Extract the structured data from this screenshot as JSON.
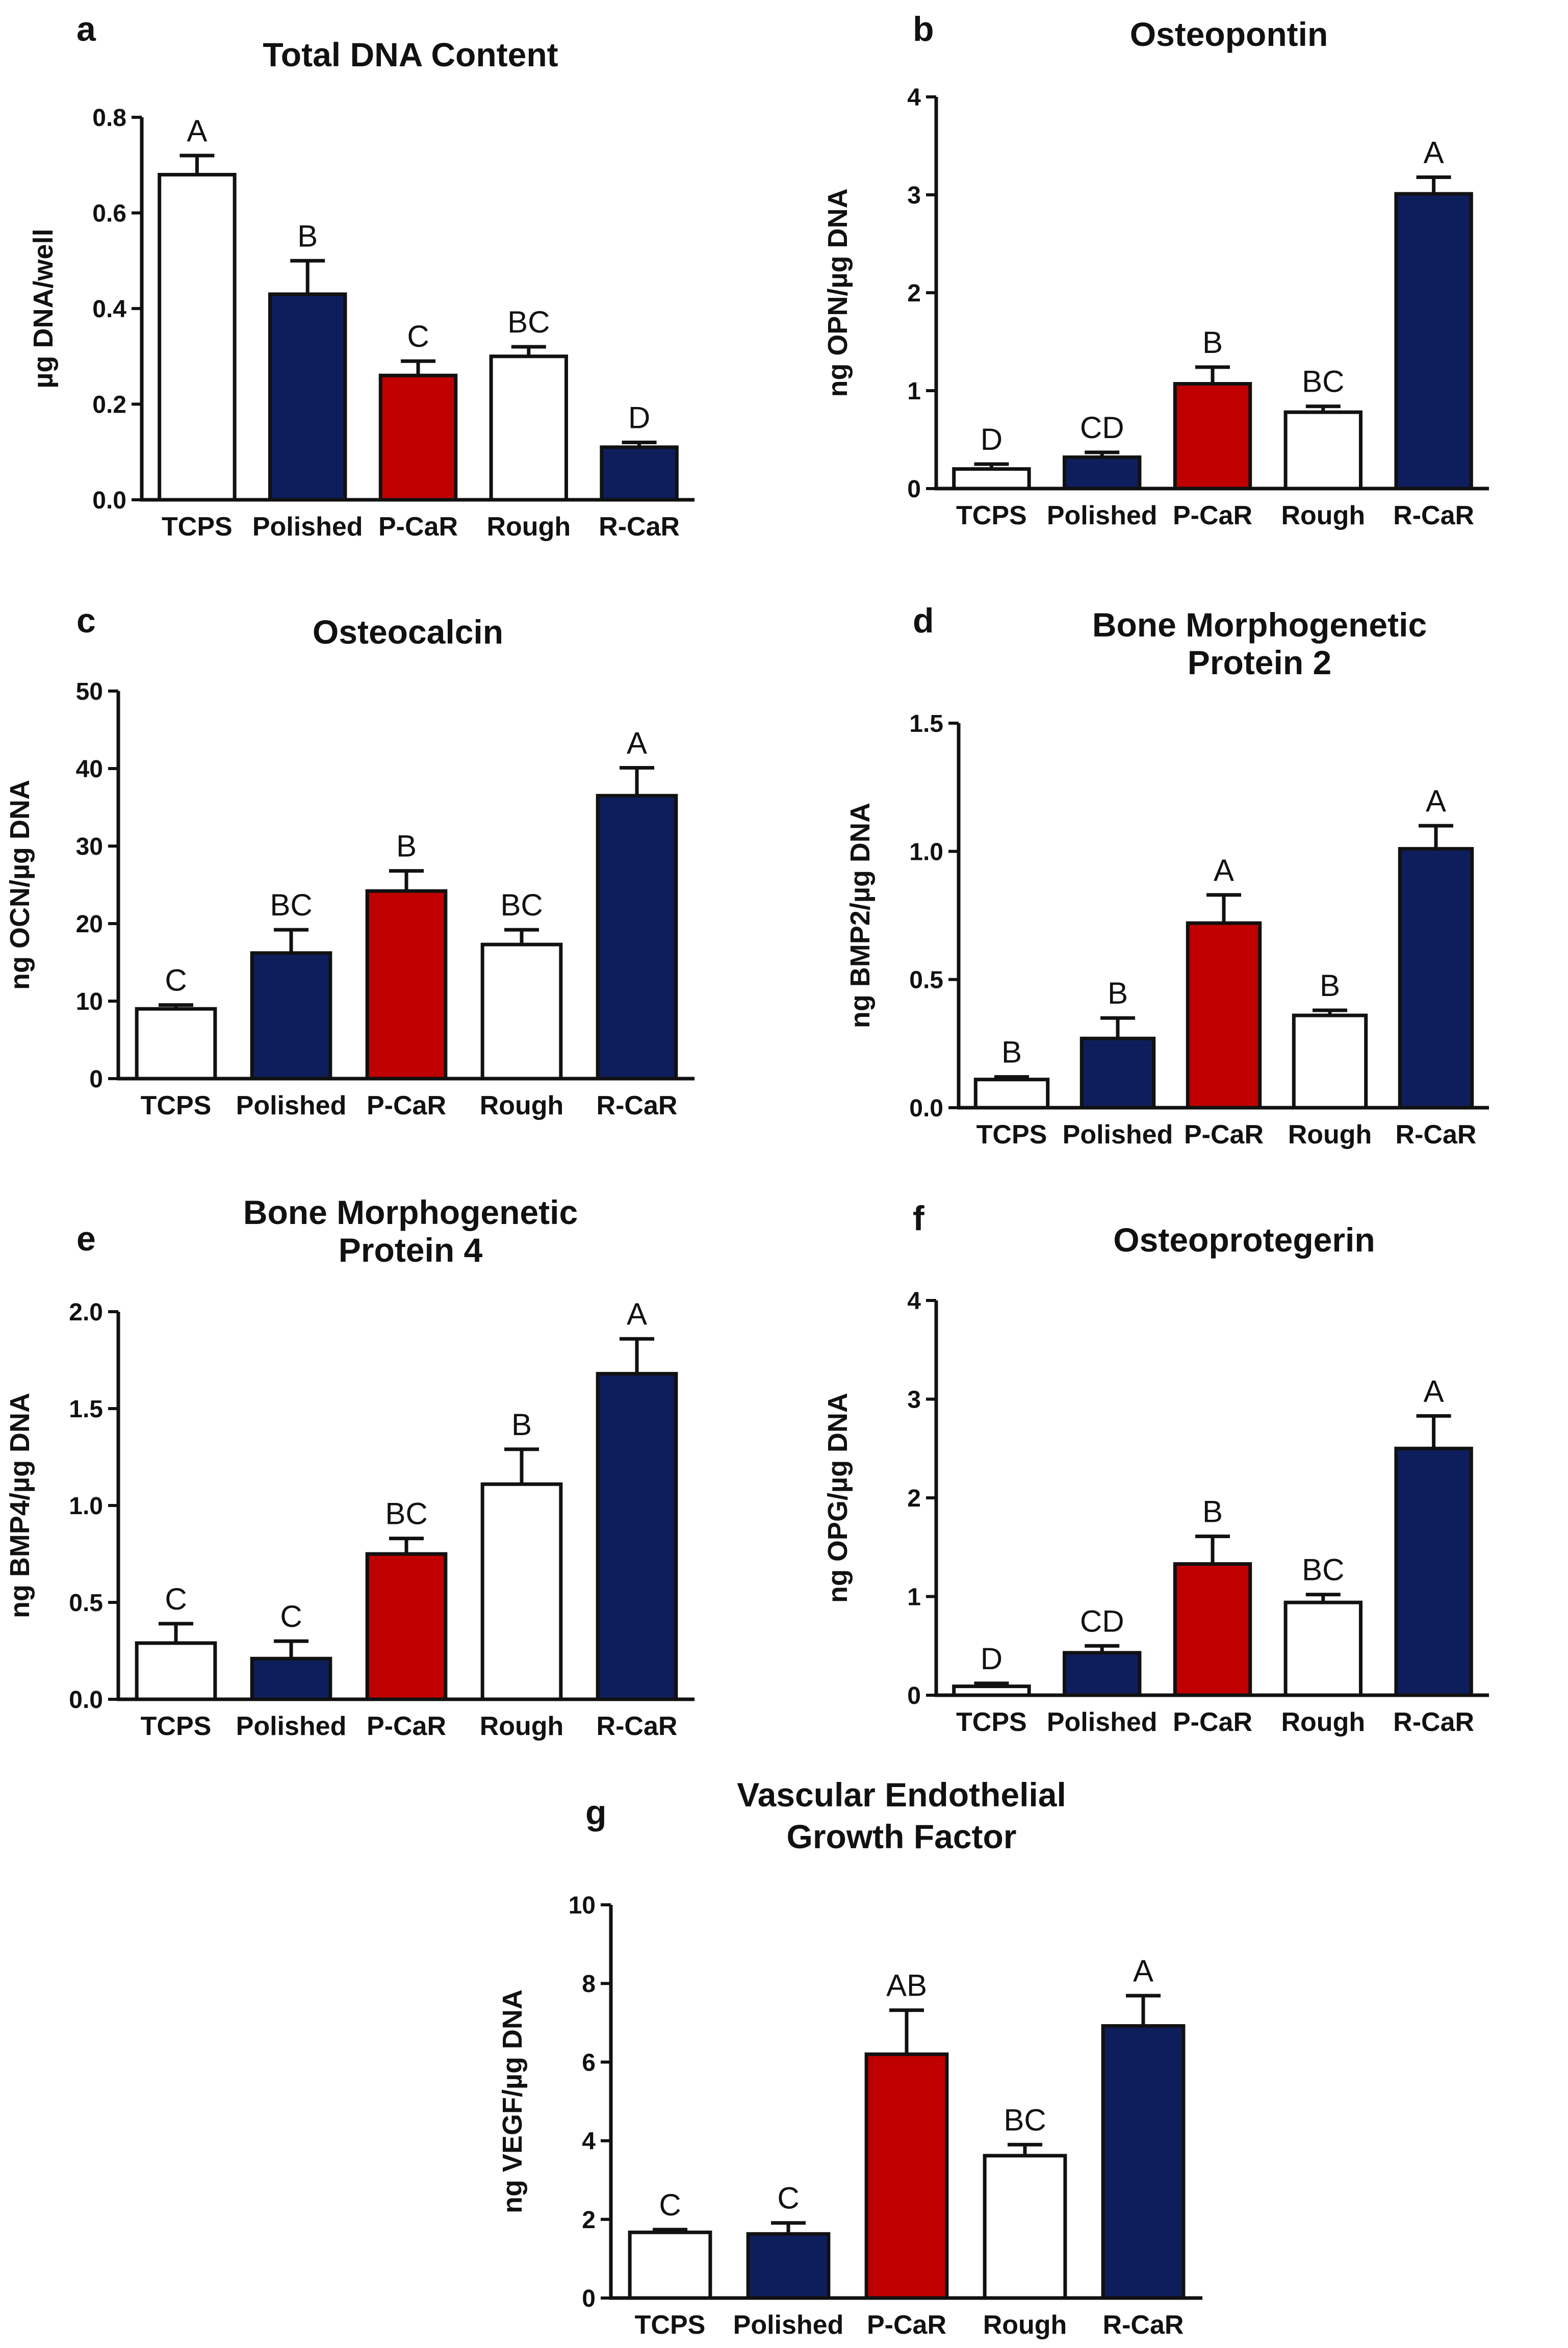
{
  "colors": {
    "white": "#ffffff",
    "navy": "#0e1e5c",
    "red": "#c00000",
    "axis": "#111111"
  },
  "chart_data": [
    {
      "id": "a",
      "type": "bar",
      "panel_label": "a",
      "title": [
        "Total DNA Content"
      ],
      "ylabel": "µg DNA/well",
      "categories": [
        "TCPS",
        "Polished",
        "P-CaR",
        "Rough",
        "R-CaR"
      ],
      "values": [
        0.68,
        0.43,
        0.26,
        0.3,
        0.11
      ],
      "errors": [
        0.04,
        0.07,
        0.03,
        0.02,
        0.01
      ],
      "letters": [
        "A",
        "B",
        "C",
        "BC",
        "D"
      ],
      "bar_colors": [
        "white",
        "navy",
        "red",
        "white",
        "navy"
      ],
      "ylim": [
        0,
        0.8
      ],
      "yticks": [
        0.0,
        0.2,
        0.4,
        0.6,
        0.8
      ],
      "ytick_labels": [
        "0.0",
        "0.2",
        "0.4",
        "0.6",
        "0.8"
      ],
      "grid": false
    },
    {
      "id": "b",
      "type": "bar",
      "panel_label": "b",
      "title": [
        "Osteopontin"
      ],
      "ylabel": "ng OPN/µg DNA",
      "categories": [
        "TCPS",
        "Polished",
        "P-CaR",
        "Rough",
        "R-CaR"
      ],
      "values": [
        0.2,
        0.32,
        1.07,
        0.78,
        3.01
      ],
      "errors": [
        0.05,
        0.05,
        0.17,
        0.06,
        0.17
      ],
      "letters": [
        "D",
        "CD",
        "B",
        "BC",
        "A"
      ],
      "bar_colors": [
        "white",
        "navy",
        "red",
        "white",
        "navy"
      ],
      "ylim": [
        0,
        4
      ],
      "yticks": [
        0,
        1,
        2,
        3,
        4
      ],
      "ytick_labels": [
        "0",
        "1",
        "2",
        "3",
        "4"
      ],
      "grid": false
    },
    {
      "id": "c",
      "type": "bar",
      "panel_label": "c",
      "title": [
        "Osteocalcin"
      ],
      "ylabel": "ng OCN/µg DNA",
      "categories": [
        "TCPS",
        "Polished",
        "P-CaR",
        "Rough",
        "R-CaR"
      ],
      "values": [
        9.0,
        16.2,
        24.2,
        17.3,
        36.5
      ],
      "errors": [
        0.5,
        3.0,
        2.6,
        1.9,
        3.6
      ],
      "letters": [
        "C",
        "BC",
        "B",
        "BC",
        "A"
      ],
      "bar_colors": [
        "white",
        "navy",
        "red",
        "white",
        "navy"
      ],
      "ylim": [
        0,
        50
      ],
      "yticks": [
        0,
        10,
        20,
        30,
        40,
        50
      ],
      "ytick_labels": [
        "0",
        "10",
        "20",
        "30",
        "40",
        "50"
      ],
      "grid": false
    },
    {
      "id": "d",
      "type": "bar",
      "panel_label": "d",
      "title": [
        "Bone Morphogenetic",
        "Protein 2"
      ],
      "ylabel": "ng BMP2/µg DNA",
      "categories": [
        "TCPS",
        "Polished",
        "P-CaR",
        "Rough",
        "R-CaR"
      ],
      "values": [
        0.11,
        0.27,
        0.72,
        0.36,
        1.01
      ],
      "errors": [
        0.01,
        0.08,
        0.11,
        0.02,
        0.09
      ],
      "letters": [
        "B",
        "B",
        "A",
        "B",
        "A"
      ],
      "bar_colors": [
        "white",
        "navy",
        "red",
        "white",
        "navy"
      ],
      "ylim": [
        0,
        1.5
      ],
      "yticks": [
        0.0,
        0.5,
        1.0,
        1.5
      ],
      "ytick_labels": [
        "0.0",
        "0.5",
        "1.0",
        "1.5"
      ],
      "grid": false
    },
    {
      "id": "e",
      "type": "bar",
      "panel_label": "e",
      "title": [
        "Bone Morphogenetic",
        "Protein 4"
      ],
      "ylabel": "ng BMP4/µg DNA",
      "categories": [
        "TCPS",
        "Polished",
        "P-CaR",
        "Rough",
        "R-CaR"
      ],
      "values": [
        0.29,
        0.21,
        0.75,
        1.11,
        1.68
      ],
      "errors": [
        0.1,
        0.09,
        0.08,
        0.18,
        0.18
      ],
      "letters": [
        "C",
        "C",
        "BC",
        "B",
        "A"
      ],
      "bar_colors": [
        "white",
        "navy",
        "red",
        "white",
        "navy"
      ],
      "ylim": [
        0,
        2.0
      ],
      "yticks": [
        0.0,
        0.5,
        1.0,
        1.5,
        2.0
      ],
      "ytick_labels": [
        "0.0",
        "0.5",
        "1.0",
        "1.5",
        "2.0"
      ],
      "grid": false
    },
    {
      "id": "f",
      "type": "bar",
      "panel_label": "f",
      "title": [
        "Osteoprotegerin"
      ],
      "ylabel": "ng OPG/µg DNA",
      "categories": [
        "TCPS",
        "Polished",
        "P-CaR",
        "Rough",
        "R-CaR"
      ],
      "values": [
        0.09,
        0.43,
        1.33,
        0.94,
        2.5
      ],
      "errors": [
        0.03,
        0.07,
        0.28,
        0.08,
        0.33
      ],
      "letters": [
        "D",
        "CD",
        "B",
        "BC",
        "A"
      ],
      "bar_colors": [
        "white",
        "navy",
        "red",
        "white",
        "navy"
      ],
      "ylim": [
        0,
        4
      ],
      "yticks": [
        0,
        1,
        2,
        3,
        4
      ],
      "ytick_labels": [
        "0",
        "1",
        "2",
        "3",
        "4"
      ],
      "grid": false
    },
    {
      "id": "g",
      "type": "bar",
      "panel_label": "g",
      "title": [
        "Vascular Endothelial",
        "Growth Factor"
      ],
      "ylabel": "ng VEGF/µg DNA",
      "categories": [
        "TCPS",
        "Polished",
        "P-CaR",
        "Rough",
        "R-CaR"
      ],
      "values": [
        1.67,
        1.63,
        6.2,
        3.62,
        6.92
      ],
      "errors": [
        0.07,
        0.28,
        1.12,
        0.28,
        0.77
      ],
      "letters": [
        "C",
        "C",
        "AB",
        "BC",
        "A"
      ],
      "bar_colors": [
        "white",
        "navy",
        "red",
        "white",
        "navy"
      ],
      "ylim": [
        0,
        10
      ],
      "yticks": [
        0,
        2,
        4,
        6,
        8,
        10
      ],
      "ytick_labels": [
        "0",
        "2",
        "4",
        "6",
        "8",
        "10"
      ],
      "grid": false
    }
  ]
}
